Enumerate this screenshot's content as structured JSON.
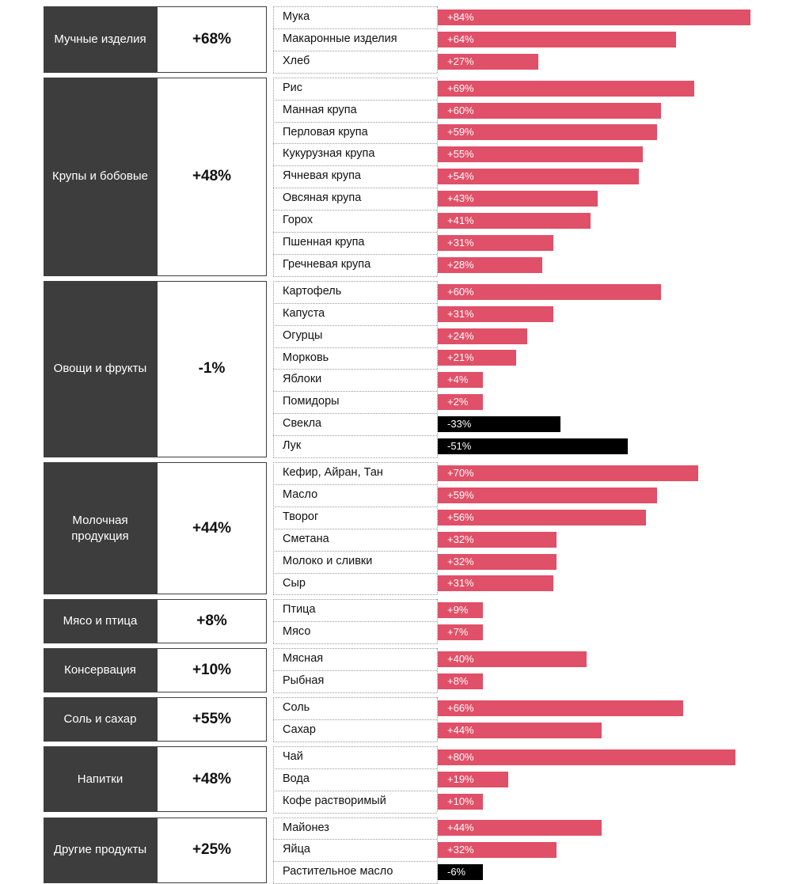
{
  "colors": {
    "positive": "#e05068",
    "negative": "#000000",
    "category_bg": "#3d3d3d"
  },
  "chart_data": {
    "type": "bar",
    "orientation": "horizontal",
    "xlim": [
      -60,
      90
    ],
    "groups": [
      {
        "name": "Мучные изделия",
        "value": "+68%",
        "items": [
          {
            "label": "Мука",
            "value": 84,
            "text": "+84%"
          },
          {
            "label": "Макаронные изделия",
            "value": 64,
            "text": "+64%"
          },
          {
            "label": "Хлеб",
            "value": 27,
            "text": "+27%"
          }
        ]
      },
      {
        "name": "Крупы и бобовые",
        "value": "+48%",
        "items": [
          {
            "label": "Рис",
            "value": 69,
            "text": "+69%"
          },
          {
            "label": "Манная крупа",
            "value": 60,
            "text": "+60%"
          },
          {
            "label": "Перловая крупа",
            "value": 59,
            "text": "+59%"
          },
          {
            "label": "Кукурузная крупа",
            "value": 55,
            "text": "+55%"
          },
          {
            "label": "Ячневая крупа",
            "value": 54,
            "text": "+54%"
          },
          {
            "label": "Овсяная крупа",
            "value": 43,
            "text": "+43%"
          },
          {
            "label": "Горох",
            "value": 41,
            "text": "+41%"
          },
          {
            "label": "Пшенная крупа",
            "value": 31,
            "text": "+31%"
          },
          {
            "label": "Гречневая крупа",
            "value": 28,
            "text": "+28%"
          }
        ]
      },
      {
        "name": "Овощи и фрукты",
        "value": "-1%",
        "items": [
          {
            "label": "Картофель",
            "value": 60,
            "text": "+60%"
          },
          {
            "label": "Капуста",
            "value": 31,
            "text": "+31%"
          },
          {
            "label": "Огурцы",
            "value": 24,
            "text": "+24%"
          },
          {
            "label": "Морковь",
            "value": 21,
            "text": "+21%"
          },
          {
            "label": "Яблоки",
            "value": 4,
            "text": "+4%"
          },
          {
            "label": "Помидоры",
            "value": 2,
            "text": "+2%"
          },
          {
            "label": "Свекла",
            "value": -33,
            "text": "-33%"
          },
          {
            "label": "Лук",
            "value": -51,
            "text": "-51%"
          }
        ]
      },
      {
        "name": "Молочная продукция",
        "value": "+44%",
        "items": [
          {
            "label": "Кефир, Айран, Тан",
            "value": 70,
            "text": "+70%"
          },
          {
            "label": "Масло",
            "value": 59,
            "text": "+59%"
          },
          {
            "label": "Творог",
            "value": 56,
            "text": "+56%"
          },
          {
            "label": "Сметана",
            "value": 32,
            "text": "+32%"
          },
          {
            "label": "Молоко и сливки",
            "value": 32,
            "text": "+32%"
          },
          {
            "label": "Сыр",
            "value": 31,
            "text": "+31%"
          }
        ]
      },
      {
        "name": "Мясо и птица",
        "value": "+8%",
        "items": [
          {
            "label": "Птица",
            "value": 9,
            "text": "+9%"
          },
          {
            "label": "Мясо",
            "value": 7,
            "text": "+7%"
          }
        ]
      },
      {
        "name": "Консервация",
        "value": "+10%",
        "items": [
          {
            "label": "Мясная",
            "value": 40,
            "text": "+40%"
          },
          {
            "label": "Рыбная",
            "value": 8,
            "text": "+8%"
          }
        ]
      },
      {
        "name": "Соль и сахар",
        "value": "+55%",
        "items": [
          {
            "label": "Соль",
            "value": 66,
            "text": "+66%"
          },
          {
            "label": "Сахар",
            "value": 44,
            "text": "+44%"
          }
        ]
      },
      {
        "name": "Напитки",
        "value": "+48%",
        "items": [
          {
            "label": "Чай",
            "value": 80,
            "text": "+80%"
          },
          {
            "label": "Вода",
            "value": 19,
            "text": "+19%"
          },
          {
            "label": "Кофе растворимый",
            "value": 10,
            "text": "+10%"
          }
        ]
      },
      {
        "name": "Другие продукты",
        "value": "+25%",
        "items": [
          {
            "label": "Майонез",
            "value": 44,
            "text": "+44%"
          },
          {
            "label": "Яйца",
            "value": 32,
            "text": "+32%"
          },
          {
            "label": "Растительное масло",
            "value": -6,
            "text": "-6%"
          }
        ]
      }
    ]
  }
}
